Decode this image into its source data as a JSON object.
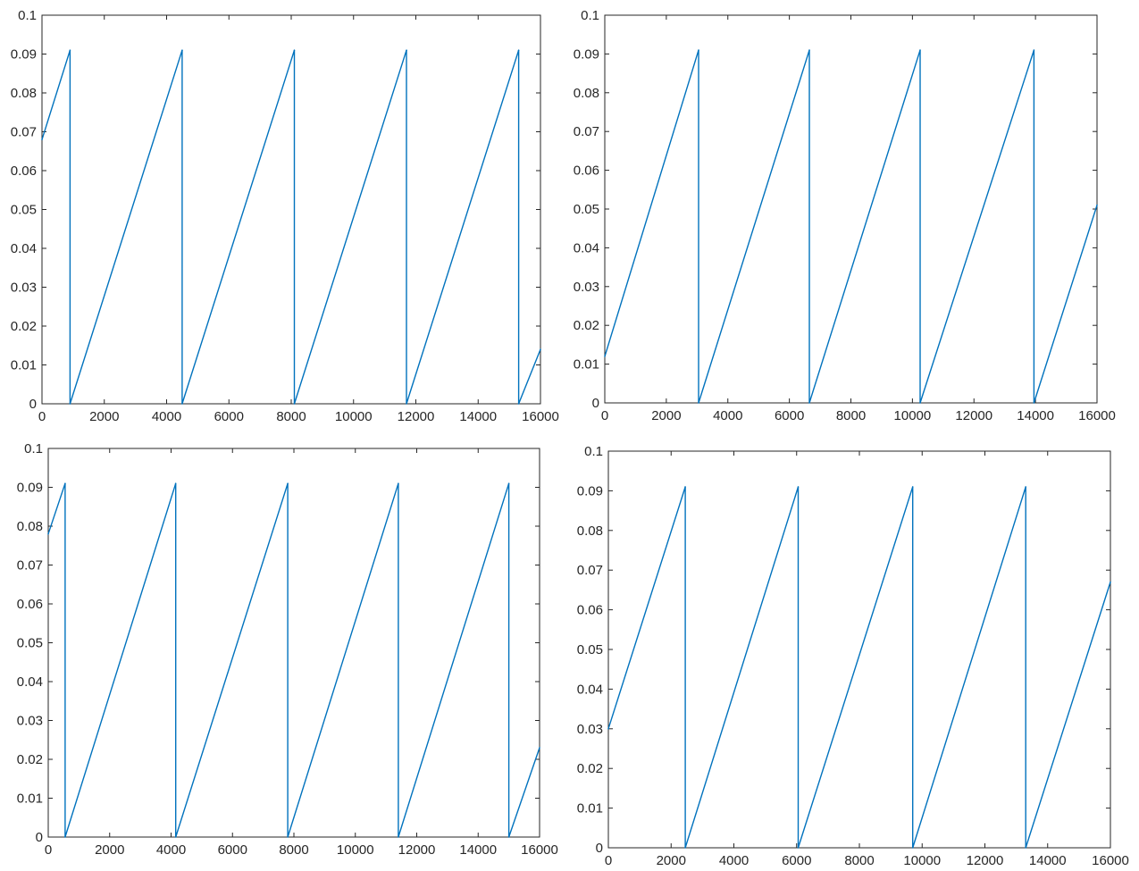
{
  "colors": {
    "series": "#0072BD",
    "axes": "#262626",
    "background": "#ffffff"
  },
  "chart_data": [
    {
      "type": "line",
      "xlim": [
        0,
        16000
      ],
      "ylim": [
        0,
        0.1
      ],
      "xticks": [
        0,
        2000,
        4000,
        6000,
        8000,
        10000,
        12000,
        14000,
        16000
      ],
      "yticks": [
        0,
        0.01,
        0.02,
        0.03,
        0.04,
        0.05,
        0.06,
        0.07,
        0.08,
        0.09,
        0.1
      ],
      "xtick_labels": [
        "0",
        "2000",
        "4000",
        "6000",
        "8000",
        "10000",
        "12000",
        "14000",
        "16000"
      ],
      "ytick_labels": [
        "0",
        "0.01",
        "0.02",
        "0.03",
        "0.04",
        "0.05",
        "0.06",
        "0.07",
        "0.08",
        "0.09",
        "0.1"
      ],
      "grid": false,
      "series": [
        {
          "x": [
            0,
            900,
            900,
            4500,
            4500,
            8100,
            8100,
            11700,
            11700,
            15300,
            15300,
            16000
          ],
          "y": [
            0.068,
            0.091,
            0,
            0.091,
            0,
            0.091,
            0,
            0.091,
            0,
            0.091,
            0,
            0.014
          ]
        }
      ]
    },
    {
      "type": "line",
      "xlim": [
        0,
        16000
      ],
      "ylim": [
        0,
        0.1
      ],
      "xticks": [
        0,
        2000,
        4000,
        6000,
        8000,
        10000,
        12000,
        14000,
        16000
      ],
      "yticks": [
        0,
        0.01,
        0.02,
        0.03,
        0.04,
        0.05,
        0.06,
        0.07,
        0.08,
        0.09,
        0.1
      ],
      "xtick_labels": [
        "0",
        "2000",
        "4000",
        "6000",
        "8000",
        "10000",
        "12000",
        "14000",
        "16000"
      ],
      "ytick_labels": [
        "0",
        "0.01",
        "0.02",
        "0.03",
        "0.04",
        "0.05",
        "0.06",
        "0.07",
        "0.08",
        "0.09",
        "0.1"
      ],
      "grid": false,
      "series": [
        {
          "x": [
            0,
            3050,
            3050,
            6650,
            6650,
            10250,
            10250,
            13950,
            13950,
            16000
          ],
          "y": [
            0.012,
            0.091,
            0,
            0.091,
            0,
            0.091,
            0,
            0.091,
            0,
            0.051
          ]
        }
      ]
    },
    {
      "type": "line",
      "xlim": [
        0,
        16000
      ],
      "ylim": [
        0,
        0.1
      ],
      "xticks": [
        0,
        2000,
        4000,
        6000,
        8000,
        10000,
        12000,
        14000,
        16000
      ],
      "yticks": [
        0,
        0.01,
        0.02,
        0.03,
        0.04,
        0.05,
        0.06,
        0.07,
        0.08,
        0.09,
        0.1
      ],
      "xtick_labels": [
        "0",
        "2000",
        "4000",
        "6000",
        "8000",
        "10000",
        "12000",
        "14000",
        "16000"
      ],
      "ytick_labels": [
        "0",
        "0.01",
        "0.02",
        "0.03",
        "0.04",
        "0.05",
        "0.06",
        "0.07",
        "0.08",
        "0.09",
        "0.1"
      ],
      "grid": false,
      "series": [
        {
          "x": [
            0,
            550,
            550,
            4150,
            4150,
            7800,
            7800,
            11400,
            11400,
            15000,
            15000,
            16000
          ],
          "y": [
            0.078,
            0.091,
            0,
            0.091,
            0,
            0.091,
            0,
            0.091,
            0,
            0.091,
            0,
            0.023
          ]
        }
      ]
    },
    {
      "type": "line",
      "xlim": [
        0,
        16000
      ],
      "ylim": [
        0,
        0.1
      ],
      "xticks": [
        0,
        2000,
        4000,
        6000,
        8000,
        10000,
        12000,
        14000,
        16000
      ],
      "yticks": [
        0,
        0.01,
        0.02,
        0.03,
        0.04,
        0.05,
        0.06,
        0.07,
        0.08,
        0.09,
        0.1
      ],
      "xtick_labels": [
        "0",
        "2000",
        "4000",
        "6000",
        "8000",
        "10000",
        "12000",
        "14000",
        "16000"
      ],
      "ytick_labels": [
        "0",
        "0.01",
        "0.02",
        "0.03",
        "0.04",
        "0.05",
        "0.06",
        "0.07",
        "0.08",
        "0.09",
        "0.1"
      ],
      "grid": false,
      "series": [
        {
          "x": [
            0,
            2450,
            2450,
            6050,
            6050,
            9700,
            9700,
            13300,
            13300,
            16000
          ],
          "y": [
            0.03,
            0.091,
            0,
            0.091,
            0,
            0.091,
            0,
            0.091,
            0,
            0.067
          ]
        }
      ]
    }
  ]
}
